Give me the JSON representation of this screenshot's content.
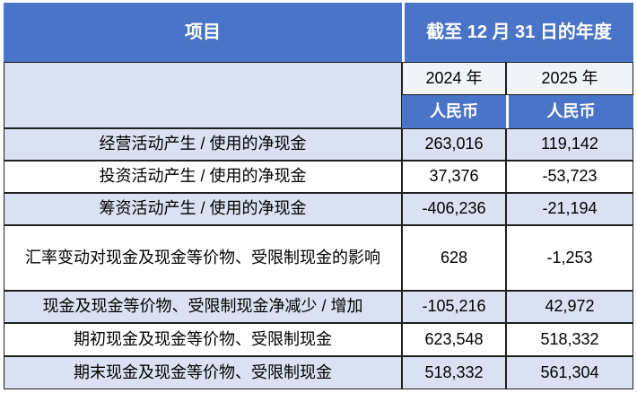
{
  "colors": {
    "header_blue": "#4a74c8",
    "row_lavender": "#dae1f2",
    "year_cell_bg": "#f1f3fa",
    "row_white": "#ffffff",
    "border_dark": "#1f1f1f",
    "header_text": "#ffffff",
    "body_text": "#000000"
  },
  "table": {
    "item_header": "项目",
    "period_header": "截至 12 月 31 日的年度",
    "year_columns": [
      "2024 年",
      "2025 年"
    ],
    "currency_row": [
      "人民币",
      "人民币"
    ],
    "rows": [
      {
        "label": "经营活动产生 / 使用的净现金",
        "v2024": "263,016",
        "v2025": "119,142"
      },
      {
        "label": "投资活动产生 / 使用的净现金",
        "v2024": "37,376",
        "v2025": "-53,723"
      },
      {
        "label": "筹资活动产生 / 使用的净现金",
        "v2024": "-406,236",
        "v2025": "-21,194"
      },
      {
        "label": "汇率变动对现金及现金等价物、受限制现金的影响",
        "v2024": "628",
        "v2025": "-1,253"
      },
      {
        "label": "现金及现金等价物、受限制现金净减少 / 增加",
        "v2024": "-105,216",
        "v2025": "42,972"
      },
      {
        "label": "期初现金及现金等价物、受限制现金",
        "v2024": "623,548",
        "v2025": "518,332"
      },
      {
        "label": "期末现金及现金等价物、受限制现金",
        "v2024": "518,332",
        "v2025": "561,304"
      }
    ]
  }
}
